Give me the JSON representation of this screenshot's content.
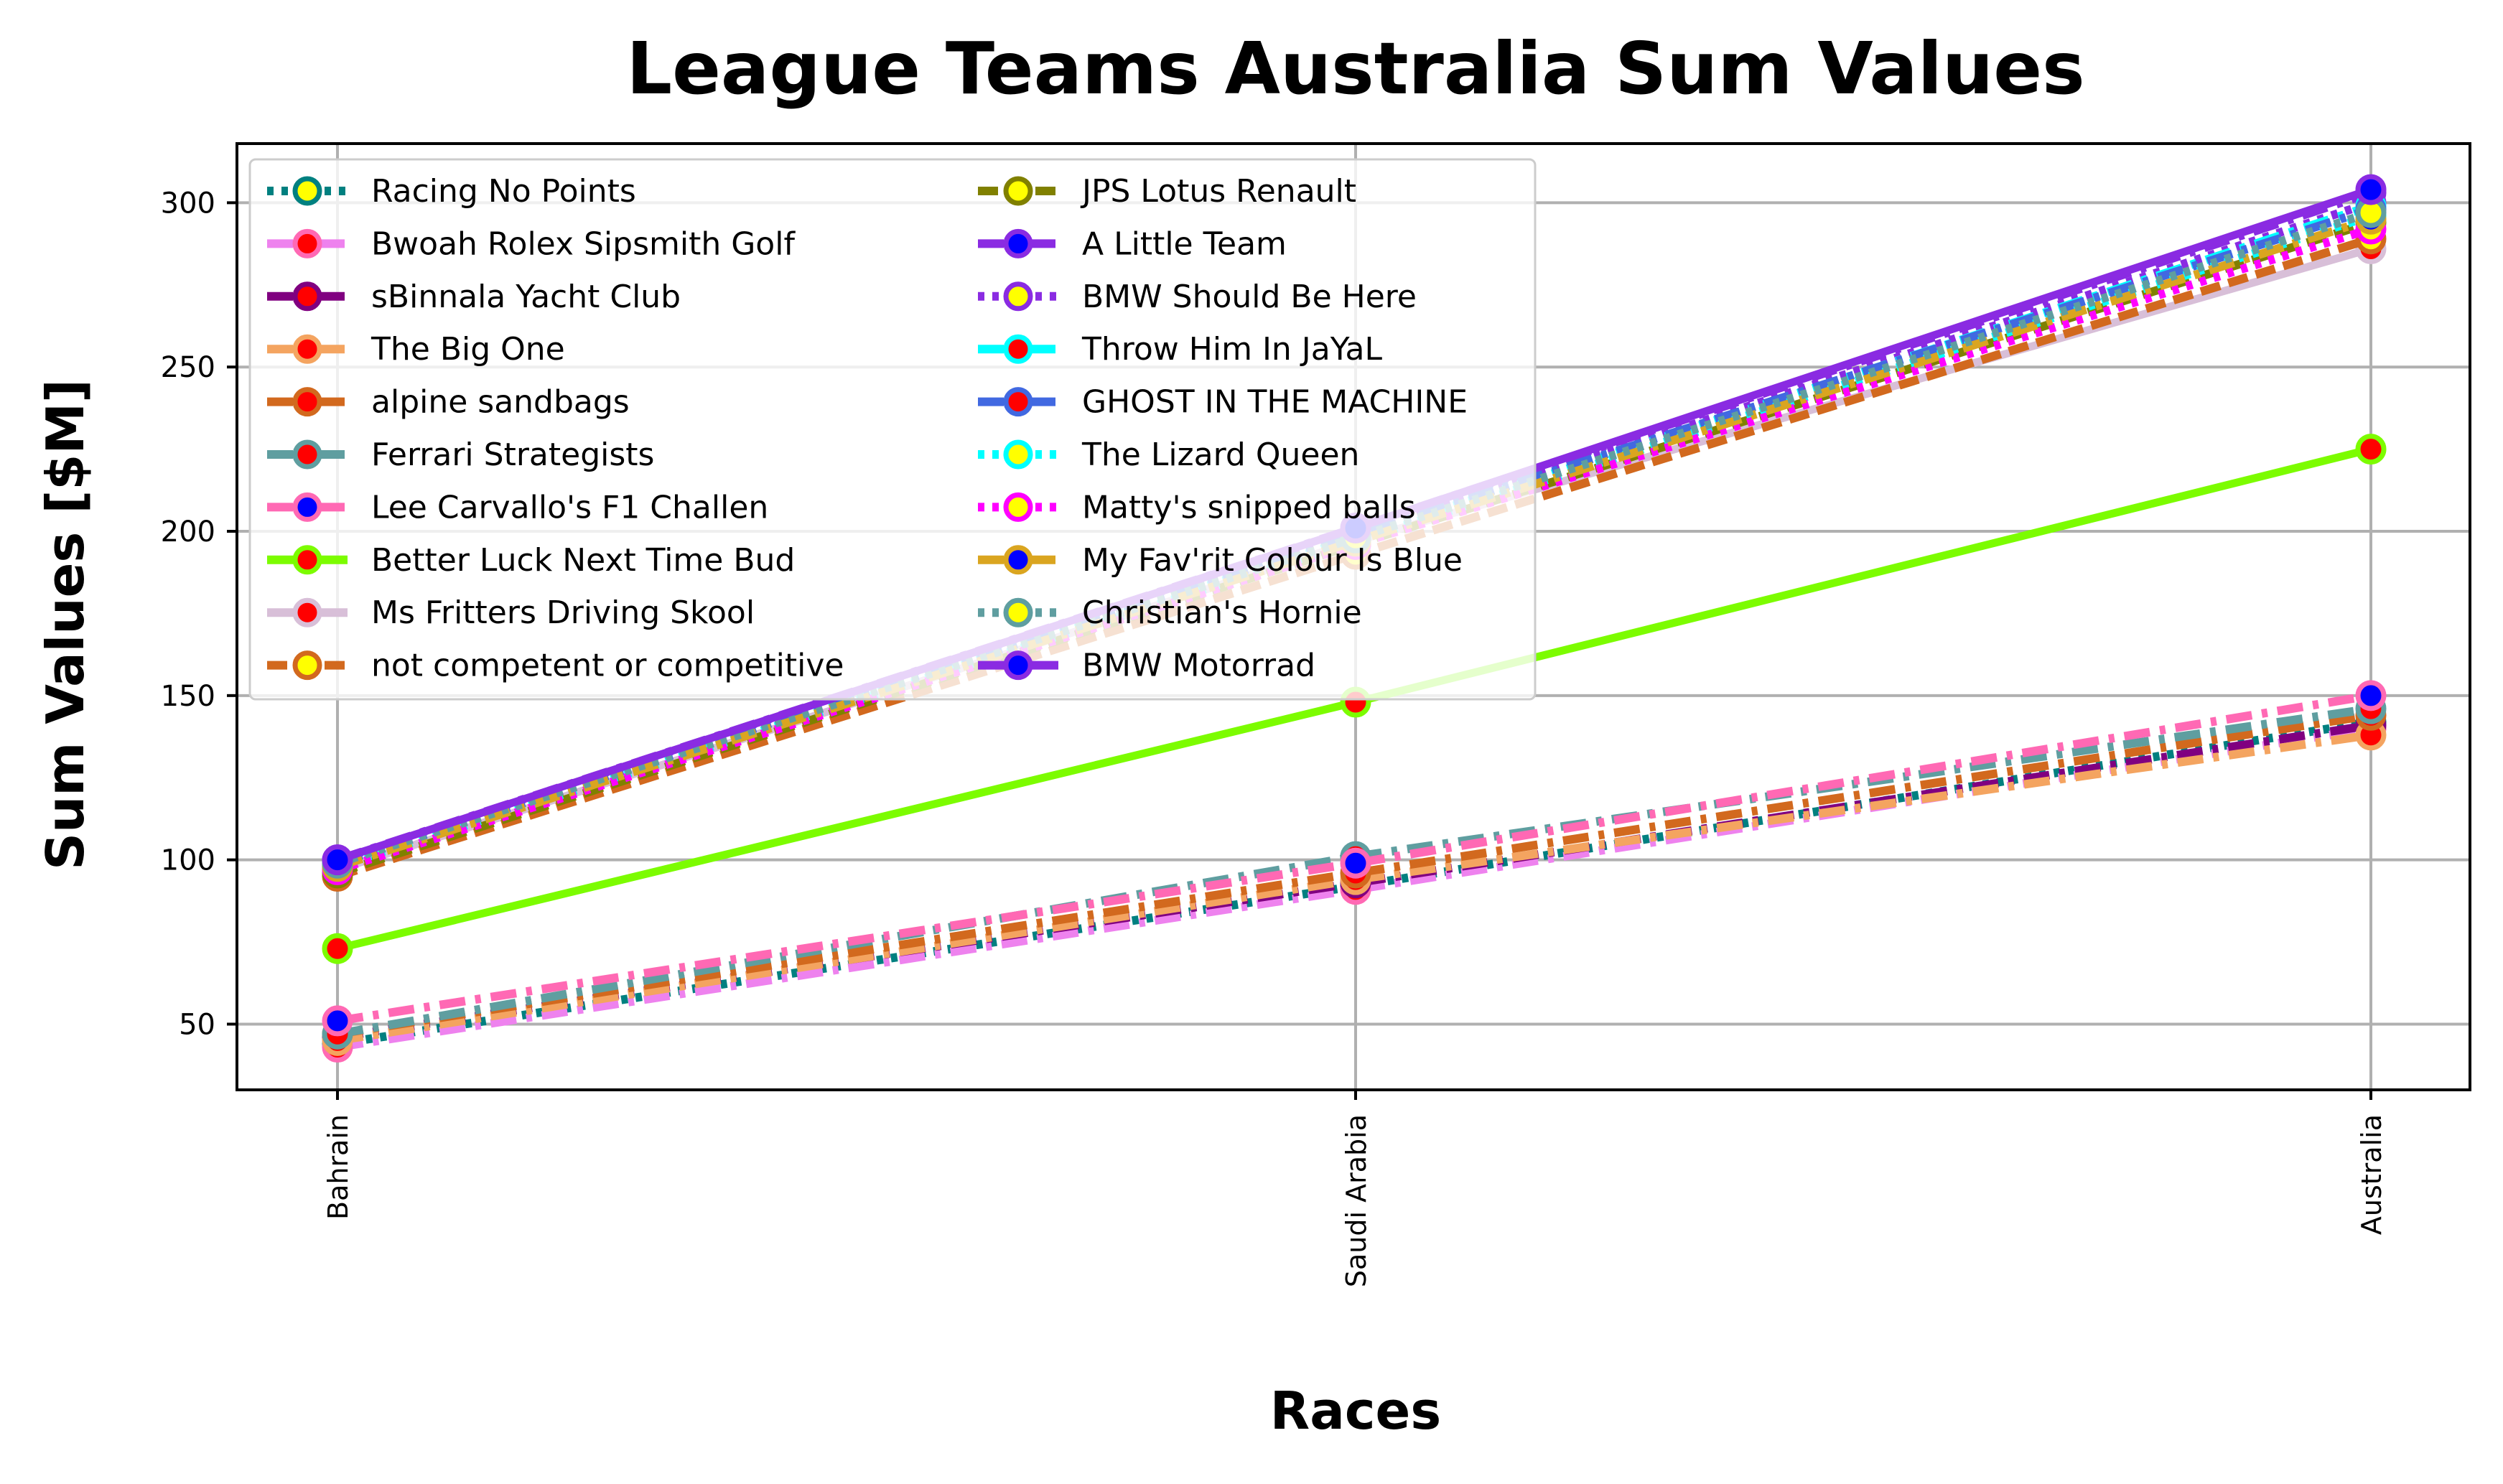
{
  "chart_data": {
    "type": "line",
    "title": "League Teams Australia Sum Values",
    "xlabel": "Races",
    "ylabel": "Sum Values [$M]",
    "categories": [
      "Bahrain",
      "Saudi Arabia",
      "Australia"
    ],
    "ylim": [
      30,
      318
    ],
    "yticks": [
      50,
      100,
      150,
      200,
      250,
      300
    ],
    "grid": true,
    "legend_position": "top-left",
    "legend_columns": 2,
    "series": [
      {
        "name": "Racing No Points",
        "values": [
          44,
          92,
          142
        ],
        "color": "#008080",
        "dash": "dot",
        "marker_face": "#ffff00",
        "marker_edge": "#008080"
      },
      {
        "name": "Bwoah Rolex Sipsmith Golf",
        "values": [
          43,
          91,
          140
        ],
        "color": "#ee82ee",
        "dash": "dashdot",
        "marker_face": "#ff0000",
        "marker_edge": "#ff69b4"
      },
      {
        "name": "sBinnala Yacht Club",
        "values": [
          46,
          93,
          141
        ],
        "color": "#800080",
        "dash": "dashdot",
        "marker_face": "#ff0000",
        "marker_edge": "#800080"
      },
      {
        "name": "The Big One",
        "values": [
          45,
          94,
          138
        ],
        "color": "#f4a460",
        "dash": "dashdot",
        "marker_face": "#ff0000",
        "marker_edge": "#f4a460"
      },
      {
        "name": "alpine sandbags",
        "values": [
          47,
          96,
          144
        ],
        "color": "#d2691e",
        "dash": "dashdot",
        "marker_face": "#ff0000",
        "marker_edge": "#d2691e"
      },
      {
        "name": "Ferrari Strategists",
        "values": [
          47,
          101,
          146
        ],
        "color": "#5f9ea0",
        "dash": "dashdot",
        "marker_face": "#ff0000",
        "marker_edge": "#5f9ea0"
      },
      {
        "name": "Lee Carvallo's F1 Challen",
        "values": [
          51,
          99,
          150
        ],
        "color": "#ff69b4",
        "dash": "dashdot",
        "marker_face": "#0000ff",
        "marker_edge": "#ff69b4"
      },
      {
        "name": "Better Luck Next Time Bud",
        "values": [
          73,
          148,
          225
        ],
        "color": "#7cfc00",
        "dash": "solid",
        "marker_face": "#ff0000",
        "marker_edge": "#7cfc00"
      },
      {
        "name": "Ms Fritters Driving Skool",
        "values": [
          97,
          197,
          286
        ],
        "color": "#d8bfd8",
        "dash": "solid",
        "marker_face": "#ff0000",
        "marker_edge": "#d8bfd8"
      },
      {
        "name": "not competent or competitive",
        "values": [
          95,
          193,
          289
        ],
        "color": "#d2691e",
        "dash": "dash",
        "marker_face": "#ffff00",
        "marker_edge": "#d2691e"
      },
      {
        "name": "JPS Lotus Renault",
        "values": [
          96,
          196,
          294
        ],
        "color": "#808000",
        "dash": "dash",
        "marker_face": "#ffff00",
        "marker_edge": "#808000"
      },
      {
        "name": "A Little Team",
        "values": [
          100,
          201,
          303
        ],
        "color": "#8a2be2",
        "dash": "dashdot",
        "marker_face": "#0000ff",
        "marker_edge": "#8a2be2"
      },
      {
        "name": "BMW Should Be Here",
        "values": [
          99,
          199,
          300
        ],
        "color": "#8a2be2",
        "dash": "dot",
        "marker_face": "#ffff00",
        "marker_edge": "#8a2be2"
      },
      {
        "name": "Throw Him In JaYaL",
        "values": [
          98,
          198,
          299
        ],
        "color": "#00ffff",
        "dash": "dashdot",
        "marker_face": "#ff0000",
        "marker_edge": "#00ffff"
      },
      {
        "name": "GHOST IN THE MACHINE",
        "values": [
          99,
          199,
          298
        ],
        "color": "#4169e1",
        "dash": "dashdot",
        "marker_face": "#ff0000",
        "marker_edge": "#4169e1"
      },
      {
        "name": "The Lizard Queen",
        "values": [
          98,
          197,
          296
        ],
        "color": "#00ffff",
        "dash": "dot",
        "marker_face": "#ffff00",
        "marker_edge": "#00ffff"
      },
      {
        "name": "Matty's snipped balls",
        "values": [
          97,
          196,
          292
        ],
        "color": "#ff00ff",
        "dash": "dot",
        "marker_face": "#ffff00",
        "marker_edge": "#ff00ff"
      },
      {
        "name": "My Fav'rit Colour Is Blue",
        "values": [
          98,
          197,
          295
        ],
        "color": "#daa520",
        "dash": "dashdot",
        "marker_face": "#0000ff",
        "marker_edge": "#daa520"
      },
      {
        "name": "Christian's Hornie",
        "values": [
          99,
          198,
          297
        ],
        "color": "#5f9ea0",
        "dash": "dot",
        "marker_face": "#ffff00",
        "marker_edge": "#5f9ea0"
      },
      {
        "name": "BMW Motorrad",
        "values": [
          100,
          201,
          304
        ],
        "color": "#8a2be2",
        "dash": "solid",
        "marker_face": "#0000ff",
        "marker_edge": "#8a2be2"
      }
    ]
  }
}
